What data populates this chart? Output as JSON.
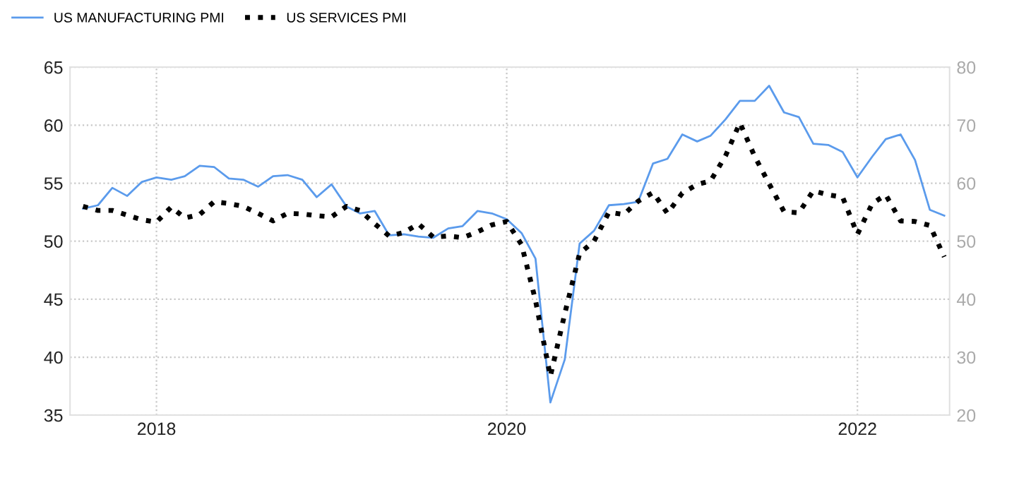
{
  "chart_data": {
    "type": "line",
    "x": [
      "2017-08",
      "2017-09",
      "2017-10",
      "2017-11",
      "2017-12",
      "2018-01",
      "2018-02",
      "2018-03",
      "2018-04",
      "2018-05",
      "2018-06",
      "2018-07",
      "2018-08",
      "2018-09",
      "2018-10",
      "2018-11",
      "2018-12",
      "2019-01",
      "2019-02",
      "2019-03",
      "2019-04",
      "2019-05",
      "2019-06",
      "2019-07",
      "2019-08",
      "2019-09",
      "2019-10",
      "2019-11",
      "2019-12",
      "2020-01",
      "2020-02",
      "2020-03",
      "2020-04",
      "2020-05",
      "2020-06",
      "2020-07",
      "2020-08",
      "2020-09",
      "2020-10",
      "2020-11",
      "2020-12",
      "2021-01",
      "2021-02",
      "2021-03",
      "2021-04",
      "2021-05",
      "2021-06",
      "2021-07",
      "2021-08",
      "2021-09",
      "2021-10",
      "2021-11",
      "2021-12",
      "2022-01",
      "2022-02",
      "2022-03",
      "2022-04",
      "2022-05",
      "2022-06",
      "2022-07"
    ],
    "series": [
      {
        "name": "US MANUFACTURING PMI",
        "color": "#5b9bec",
        "line_style": "solid",
        "values": [
          52.8,
          53.1,
          54.6,
          53.9,
          55.1,
          55.5,
          55.3,
          55.6,
          56.5,
          56.4,
          55.4,
          55.3,
          54.7,
          55.6,
          55.7,
          55.3,
          53.8,
          54.9,
          53.0,
          52.4,
          52.6,
          50.5,
          50.6,
          50.4,
          50.3,
          51.1,
          51.3,
          52.6,
          52.4,
          51.9,
          50.7,
          48.5,
          36.1,
          39.8,
          49.8,
          50.9,
          53.1,
          53.2,
          53.4,
          56.7,
          57.1,
          59.2,
          58.6,
          59.1,
          60.5,
          62.1,
          62.1,
          63.4,
          61.1,
          60.7,
          58.4,
          58.3,
          57.7,
          55.5,
          57.3,
          58.8,
          59.2,
          57.0,
          52.7,
          52.2
        ]
      },
      {
        "name": "US SERVICES PMI",
        "color": "#000000",
        "line_style": "dotted",
        "axis": "y2",
        "values": [
          56.0,
          55.3,
          55.3,
          54.5,
          53.7,
          53.3,
          55.9,
          54.0,
          54.6,
          56.8,
          56.5,
          56.0,
          54.8,
          53.5,
          54.8,
          54.7,
          54.4,
          54.2,
          56.0,
          55.3,
          53.0,
          50.9,
          51.5,
          53.0,
          50.7,
          50.9,
          50.6,
          51.6,
          52.8,
          53.4,
          49.4,
          39.8,
          26.7,
          37.5,
          47.9,
          50.0,
          55.0,
          54.6,
          56.9,
          58.4,
          54.8,
          58.3,
          59.8,
          60.4,
          64.7,
          70.4,
          64.6,
          59.9,
          55.1,
          54.9,
          58.7,
          58.0,
          57.6,
          51.2,
          56.5,
          58.0,
          53.5,
          53.4,
          52.7,
          47.3
        ]
      }
    ],
    "xlim": [
      "2017-07-05",
      "2022-07-12"
    ],
    "xticks": [
      {
        "value": "2018-01-01",
        "label": "2018"
      },
      {
        "value": "2020-01-01",
        "label": "2020"
      },
      {
        "value": "2022-01-01",
        "label": "2022"
      }
    ],
    "ylim": [
      35,
      65
    ],
    "yticks": [
      35,
      40,
      45,
      50,
      55,
      60,
      65
    ],
    "y2lim": [
      20,
      80
    ],
    "y2ticks": [
      20,
      30,
      40,
      50,
      60,
      70,
      80
    ],
    "grid": true,
    "legend": "top left"
  }
}
